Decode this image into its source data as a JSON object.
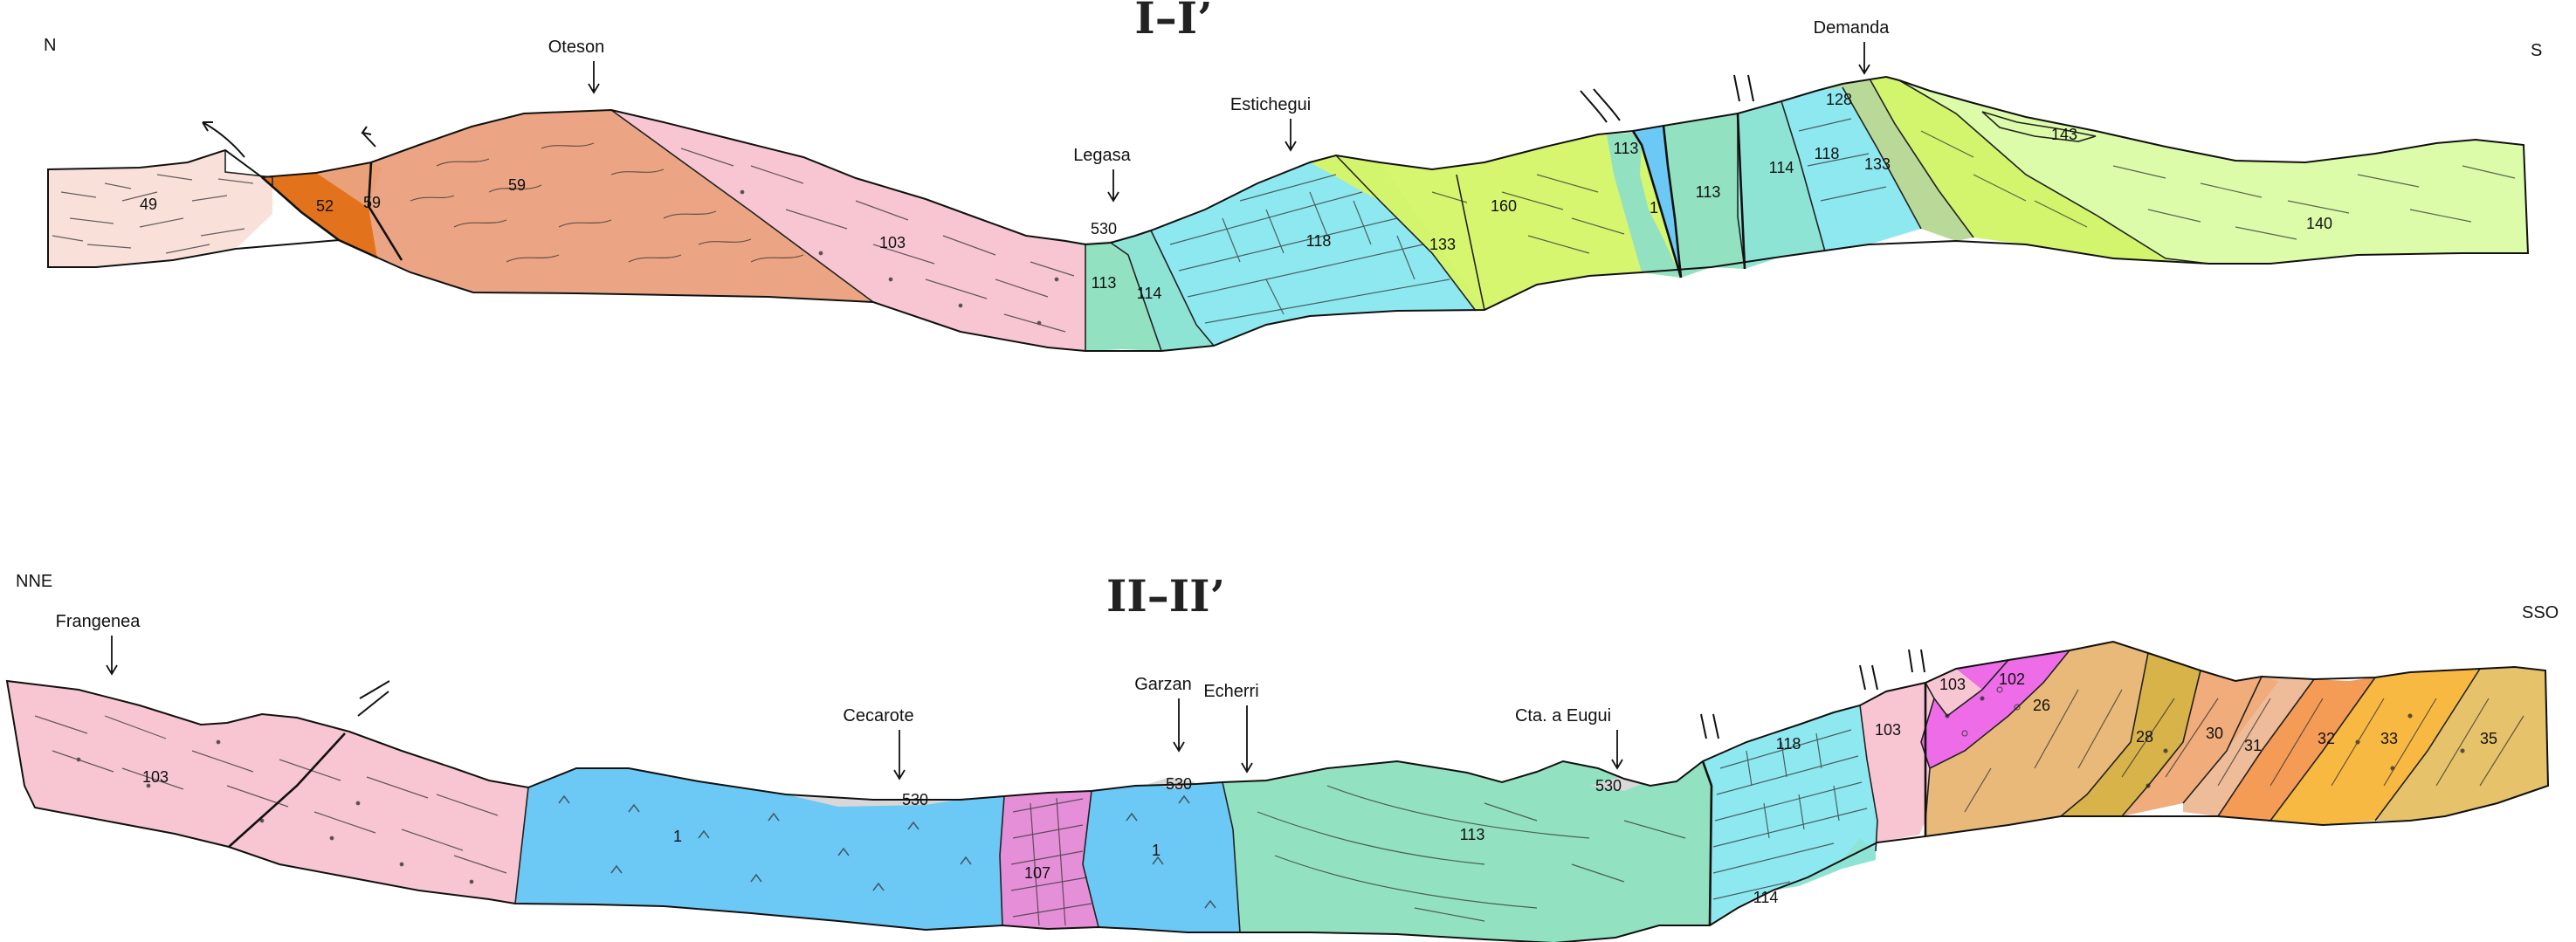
{
  "sections": [
    {
      "id": "I",
      "title": "I–I’",
      "left_orientation": "N",
      "right_orientation": "S",
      "localities": [
        "Oteson",
        "Legasa",
        "Estichegui",
        "Demanda"
      ],
      "units": [
        "49",
        "52",
        "59",
        "59",
        "59",
        "103",
        "530",
        "113",
        "114",
        "118",
        "133",
        "160",
        "113",
        "1",
        "113",
        "114",
        "118",
        "128",
        "133",
        "143",
        "140"
      ]
    },
    {
      "id": "II",
      "title": "II–II’",
      "left_orientation": "NNE",
      "right_orientation": "SSO",
      "localities": [
        "Frangenea",
        "Cecarote",
        "Garzan",
        "Echerri",
        "Cta. a Eugui"
      ],
      "units": [
        "103",
        "1",
        "530",
        "107",
        "530",
        "1",
        "113",
        "530",
        "118",
        "114",
        "103",
        "103",
        "102",
        "26",
        "28",
        "30",
        "31",
        "32",
        "33",
        "35"
      ]
    }
  ],
  "colors": {
    "u49": "#f9e1da",
    "u52": "#e2731c",
    "u59": "#eba584",
    "u103": "#f8c6d2",
    "u107": "#e58fd8",
    "u102": "#ee6ce8",
    "u1": "#6cc8f5",
    "u113": "#92e1c1",
    "u114": "#8ee4d4",
    "u118": "#8ee8ef",
    "u128": "#b9d999",
    "u133": "#d3f46d",
    "u160": "#d6f670",
    "u140": "#dcfcaa",
    "u530": "#d8d8d8",
    "u26": "#e8b978",
    "u28": "#d8b349",
    "u30": "#f0ac7b",
    "u31": "#eebc99",
    "u32": "#f49b56",
    "u33": "#f8b942",
    "u35": "#e6c26a"
  }
}
